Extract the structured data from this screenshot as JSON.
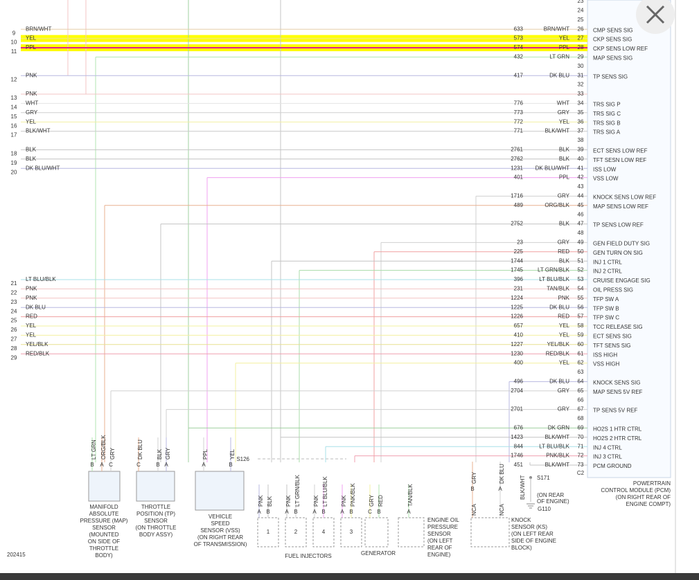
{
  "rows": [
    {
      "pin": 23
    },
    {
      "pin": 24
    },
    {
      "pin": 25
    },
    {
      "left_num": 9,
      "left_color": "BRN/WHT",
      "circuit": 633,
      "color": "BRN/WHT",
      "pin": 26,
      "function": "CMP SENS SIG",
      "wire": "#e6cfa8"
    },
    {
      "left_num": 10,
      "left_color": "YEL",
      "circuit": 573,
      "color": "YEL",
      "pin": 27,
      "function": "CKP SENS SIG",
      "wire": "#f3f060",
      "highlight": "#ffff00"
    },
    {
      "left_num": 11,
      "left_color": "PPL",
      "circuit": 574,
      "color": "PPL",
      "pin": 28,
      "function": "CKP SENS LOW REF",
      "wire": "#e0208c",
      "highlight": "#ffff00"
    },
    {
      "circuit": 432,
      "color": "LT GRN",
      "pin": 29,
      "function": "MAP SENS SIG",
      "wire": "#b0e6b0"
    },
    {
      "pin": 30
    },
    {
      "left_num": 12,
      "left_color": "PNK",
      "circuit": 417,
      "color": "DK BLU",
      "pin": 31,
      "function": "TP SENS SIG",
      "wire": "#b8b8e0"
    },
    {
      "pin": 32
    },
    {
      "left_num": 13,
      "left_color": "PNK",
      "pin": 33,
      "wire": "#f3c4c4"
    },
    {
      "left_num": 14,
      "left_color": "WHT",
      "circuit": 776,
      "color": "WHT",
      "pin": 34,
      "function": "TRS SIG P",
      "wire": "#e4e4e4"
    },
    {
      "left_num": 15,
      "left_color": "GRY",
      "circuit": 773,
      "color": "GRY",
      "pin": 35,
      "function": "TRS SIG C",
      "wire": "#d0d0d0"
    },
    {
      "left_num": 16,
      "left_color": "YEL",
      "circuit": 772,
      "color": "YEL",
      "pin": 36,
      "function": "TRS SIG B",
      "wire": "#f3f0a0"
    },
    {
      "left_num": 17,
      "left_color": "BLK/WHT",
      "circuit": 771,
      "color": "BLK/WHT",
      "pin": 37,
      "function": "TRS SIG A",
      "wire": "#cccccc"
    },
    {
      "pin": 38
    },
    {
      "left_num": 18,
      "left_color": "BLK",
      "circuit": 2761,
      "color": "BLK",
      "pin": 39,
      "function": "ECT SENS LOW REF",
      "wire": "#c4c4c4"
    },
    {
      "left_num": 19,
      "left_color": "BLK",
      "circuit": 2762,
      "color": "BLK",
      "pin": 40,
      "function": "TFT SESN LOW REF",
      "wire": "#c4c4c4"
    },
    {
      "left_num": 20,
      "left_color": "DK BLU/WHT",
      "circuit": 1231,
      "color": "DK BLU/WHT",
      "pin": 41,
      "function": "ISS LOW",
      "wire": "#b8b8e0"
    },
    {
      "circuit": 401,
      "color": "PPL",
      "pin": 42,
      "function": "VSS LOW",
      "wire": "#f0a0f0"
    },
    {
      "pin": 43
    },
    {
      "circuit": 1716,
      "color": "GRY",
      "pin": 44,
      "function": "KNOCK SENS LOW REF",
      "wire": "#d0d0d0"
    },
    {
      "circuit": 489,
      "color": "ORG/BLK",
      "pin": 45,
      "function": "MAP SENS LOW REF",
      "wire": "#e8b090"
    },
    {
      "pin": 46
    },
    {
      "circuit": 2752,
      "color": "BLK",
      "pin": 47,
      "function": "TP SENS LOW REF",
      "wire": "#c4c4c4"
    },
    {
      "pin": 48
    },
    {
      "circuit": 23,
      "color": "GRY",
      "pin": 49,
      "function": "GEN FIELD DUTY SIG",
      "wire": "#d0d0d0"
    },
    {
      "circuit": 225,
      "color": "RED",
      "pin": 50,
      "function": "GEN TURN ON SIG",
      "wire": "#f0a0a0"
    },
    {
      "circuit": 1744,
      "color": "BLK",
      "pin": 51,
      "function": "INJ 1 CTRL",
      "wire": "#c4c4c4"
    },
    {
      "circuit": 1745,
      "color": "LT GRN/BLK",
      "pin": 52,
      "function": "INJ 2 CTRL",
      "wire": "#a8dca8"
    },
    {
      "left_num": 21,
      "left_color": "LT BLU/BLK",
      "circuit": 396,
      "color": "LT BLU/BLK",
      "pin": 53,
      "function": "CRUISE ENGAGE SIG",
      "wire": "#a8e0e8"
    },
    {
      "left_num": 22,
      "left_color": "PNK",
      "circuit": 231,
      "color": "TAN/BLK",
      "pin": 54,
      "function": "OIL PRESS SIG",
      "wire": "#f3c4c4"
    },
    {
      "left_num": 23,
      "left_color": "PNK",
      "circuit": 1224,
      "color": "PNK",
      "pin": 55,
      "function": "TFP SW A",
      "wire": "#f3c4c4"
    },
    {
      "left_num": 24,
      "left_color": "DK BLU",
      "circuit": 1225,
      "color": "DK BLU",
      "pin": 56,
      "function": "TFP SW B",
      "wire": "#b8b8e0"
    },
    {
      "left_num": 25,
      "left_color": "RED",
      "circuit": 1226,
      "color": "RED",
      "pin": 57,
      "function": "TFP SW C",
      "wire": "#f0a0a0"
    },
    {
      "left_num": 26,
      "left_color": "YEL",
      "circuit": 657,
      "color": "YEL",
      "pin": 58,
      "function": "TCC RELEASE SIG",
      "wire": "#f3f0a0"
    },
    {
      "left_num": 27,
      "left_color": "YEL",
      "circuit": 410,
      "color": "YEL",
      "pin": 59,
      "function": "ECT SENS SIG",
      "wire": "#f3f0a0"
    },
    {
      "left_num": 28,
      "left_color": "YEL/BLK",
      "circuit": 1227,
      "color": "YEL/BLK",
      "pin": 60,
      "function": "TFT SENS SIG",
      "wire": "#e8e090"
    },
    {
      "left_num": 29,
      "left_color": "RED/BLK",
      "circuit": 1230,
      "color": "RED/BLK",
      "pin": 61,
      "function": "ISS HIGH",
      "wire": "#f0a0b0"
    },
    {
      "circuit": 400,
      "color": "YEL",
      "pin": 62,
      "function": "VSS HIGH",
      "wire": "#f3f0a0"
    },
    {
      "pin": 63
    },
    {
      "circuit": 496,
      "color": "DK BLU",
      "pin": 64,
      "function": "KNOCK SENS SIG",
      "wire": "#b8b8e0"
    },
    {
      "circuit": 2704,
      "color": "GRY",
      "pin": 65,
      "function": "MAP SENS 5V REF",
      "wire": "#d0d0d0"
    },
    {
      "pin": 66
    },
    {
      "circuit": 2701,
      "color": "GRY",
      "pin": 67,
      "function": "TP SENS 5V REF",
      "wire": "#d0d0d0"
    },
    {
      "pin": 68
    },
    {
      "circuit": 676,
      "color": "DK GRN",
      "pin": 69,
      "function": "HO2S 1 HTR CTRL",
      "wire": "#a0d0a0"
    },
    {
      "circuit": 1423,
      "color": "BLK/WHT",
      "pin": 70,
      "function": "HO2S 2 HTR CTRL",
      "wire": "#c4c4c4"
    },
    {
      "circuit": 844,
      "color": "LT BLU/BLK",
      "pin": 71,
      "function": "INJ 4 CTRL",
      "wire": "#a8e0e8"
    },
    {
      "circuit": 1746,
      "color": "PNK/BLK",
      "pin": 72,
      "function": "INJ 3 CTRL",
      "wire": "#f0a0b0"
    },
    {
      "circuit": 451,
      "color": "BLK/WHT",
      "pin": 73,
      "function": "PCM GROUND",
      "wire": "#c4c4c4"
    }
  ],
  "connector_label": "C2",
  "pcm_label": [
    "POWERTRAIN",
    "CONTROL MODULE (PCM)",
    "(ON RIGHT REAR OF",
    "ENGINE COMPT)"
  ],
  "components": [
    {
      "pins": [
        {
          "letter": "B",
          "color": "LT GRN"
        },
        {
          "letter": "A",
          "color": "ORG/BLK"
        },
        {
          "letter": "C",
          "color": "GRY"
        }
      ],
      "name_lines": [
        "MANIFOLD",
        "ABSOLUTE",
        "PRESSURE (MAP)",
        "SENSOR",
        "(MOUNTED",
        "ON SIDE OF",
        "THROTTLE",
        "BODY)"
      ]
    },
    {
      "pins": [
        {
          "letter": "C",
          "color": "DK BLU"
        },
        {
          "letter": "B",
          "color": "BLK"
        },
        {
          "letter": "A",
          "color": "GRY"
        }
      ],
      "name_lines": [
        "THROTTLE",
        "POSITION (TP)",
        "SENSOR",
        "(ON THROTTLE",
        "BODY ASSY)"
      ]
    },
    {
      "pins": [
        {
          "letter": "A",
          "color": "PPL"
        },
        {
          "letter": "B",
          "color": "YEL"
        }
      ],
      "name_lines": [
        "VEHICLE",
        "SPEED",
        "SENSOR (VSS)",
        "(ON RIGHT REAR",
        "OF TRANSMISSION)"
      ]
    },
    {
      "number": "1",
      "pins": [
        {
          "letter": "A",
          "color": "PNK"
        },
        {
          "letter": "B",
          "color": "BLK"
        }
      ]
    },
    {
      "number": "2",
      "pins": [
        {
          "letter": "A",
          "color": "PNK"
        },
        {
          "letter": "B",
          "color": "LT GRN/BLK"
        }
      ]
    },
    {
      "number": "4",
      "pins": [
        {
          "letter": "A",
          "color": "PNK"
        },
        {
          "letter": "B",
          "color": "LT BLU/BLK"
        }
      ]
    },
    {
      "number": "3",
      "pins": [
        {
          "letter": "A",
          "color": "PNK"
        },
        {
          "letter": "B",
          "color": "PNK/BLK"
        }
      ]
    },
    {
      "pins": [
        {
          "letter": "C",
          "color": "GRY"
        },
        {
          "letter": "B",
          "color": "RED"
        }
      ],
      "name_lines": [
        "GENERATOR"
      ]
    },
    {
      "pins": [
        {
          "letter": "A",
          "color": "TAN/BLK"
        }
      ],
      "name_lines": [
        "ENGINE OIL",
        "PRESSURE",
        "SENSOR",
        "(ON LEFT",
        "REAR OF",
        "ENGINE)"
      ]
    },
    {
      "pins": [
        {
          "letter": "B",
          "color": "GRY",
          "note": "NCA"
        },
        {
          "letter": "A",
          "color": "DK BLU",
          "note": "NCA"
        }
      ],
      "name_lines": [
        "KNOCK",
        "SENSOR (KS)",
        "(ON LEFT REAR",
        "SIDE OF ENGINE",
        "BLOCK)"
      ]
    }
  ],
  "injector_group": "FUEL INJECTORS",
  "splice_1": "S126",
  "splice_2": "S171",
  "ground": {
    "wire": "BLK/WHT",
    "location": [
      "(ON REAR",
      "OF ENGINE)"
    ],
    "name": "G110"
  },
  "figure_id": "202415"
}
